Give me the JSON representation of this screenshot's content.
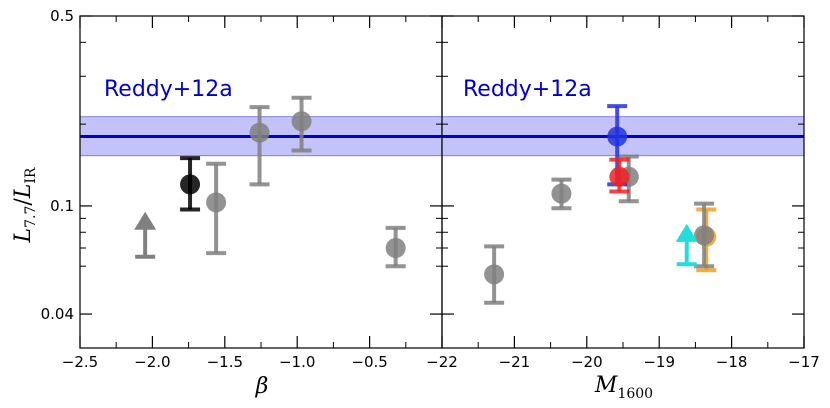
{
  "chart_data": {
    "type": "scatter",
    "y_axis": {
      "label": "L7.7/LIR",
      "label_main": "L",
      "label_sub1": "7.7",
      "label_slash": "/",
      "label_main2": "L",
      "label_sub2": "IR",
      "scale": "log",
      "ylim": [
        0.03,
        0.5
      ],
      "ticks": [
        {
          "value": 0.5,
          "label": "0.5"
        },
        {
          "value": 0.1,
          "label": "0.1"
        },
        {
          "value": 0.04,
          "label": "0.04"
        }
      ],
      "minor_ticks": [
        0.06,
        0.07,
        0.08,
        0.09,
        0.2,
        0.3,
        0.4
      ]
    },
    "reference_band": {
      "label": "Reddy+12a",
      "color": "#0000cc",
      "fill": "#b8b8f8",
      "value": 0.18,
      "low": 0.153,
      "high": 0.213
    },
    "panels": [
      {
        "xlabel": "β",
        "xlabel_main": "β",
        "xlabel_sub": "",
        "xlim": [
          -2.5,
          0.0
        ],
        "ticks": [
          {
            "value": -2.5,
            "label": "−2.5"
          },
          {
            "value": -2.0,
            "label": "−2.0"
          },
          {
            "value": -1.5,
            "label": "−1.5"
          },
          {
            "value": -1.0,
            "label": "−1.0"
          },
          {
            "value": -0.5,
            "label": "−0.5"
          }
        ],
        "minor_ticks": [
          -2.25,
          -1.75,
          -1.25,
          -0.75,
          -0.25
        ],
        "points": [
          {
            "x": -1.74,
            "y": 0.12,
            "yerr_low": 0.097,
            "yerr_high": 0.15,
            "color": "#000000",
            "marker": "circle"
          },
          {
            "x": -1.56,
            "y": 0.103,
            "yerr_low": 0.067,
            "yerr_high": 0.143,
            "color": "#808080",
            "marker": "circle"
          },
          {
            "x": -1.26,
            "y": 0.186,
            "yerr_low": 0.12,
            "yerr_high": 0.231,
            "color": "#808080",
            "marker": "circle"
          },
          {
            "x": -0.97,
            "y": 0.205,
            "yerr_low": 0.16,
            "yerr_high": 0.25,
            "color": "#808080",
            "marker": "circle"
          },
          {
            "x": -0.32,
            "y": 0.07,
            "yerr_low": 0.06,
            "yerr_high": 0.083,
            "color": "#808080",
            "marker": "circle"
          },
          {
            "x": -2.05,
            "y": 0.065,
            "color": "#808080",
            "marker": "lower-limit",
            "arrow_top": 0.092
          }
        ]
      },
      {
        "xlabel": "M1600",
        "xlabel_main": "M",
        "xlabel_sub": "1600",
        "xlim": [
          -22.0,
          -17.0
        ],
        "ticks": [
          {
            "value": -22,
            "label": "−22"
          },
          {
            "value": -21,
            "label": "−21"
          },
          {
            "value": -20,
            "label": "−20"
          },
          {
            "value": -19,
            "label": "−19"
          },
          {
            "value": -18,
            "label": "−18"
          },
          {
            "value": -17,
            "label": "−17"
          }
        ],
        "minor_ticks": [
          -21.5,
          -20.5,
          -19.5,
          -18.5,
          -17.5
        ],
        "points": [
          {
            "x": -21.28,
            "y": 0.056,
            "yerr_low": 0.044,
            "yerr_high": 0.071,
            "color": "#808080",
            "marker": "circle"
          },
          {
            "x": -20.35,
            "y": 0.111,
            "yerr_low": 0.098,
            "yerr_high": 0.125,
            "color": "#808080",
            "marker": "circle"
          },
          {
            "x": -19.42,
            "y": 0.128,
            "yerr_low": 0.104,
            "yerr_high": 0.152,
            "color": "#808080",
            "marker": "circle"
          },
          {
            "x": -19.58,
            "y": 0.18,
            "yerr_low": 0.12,
            "yerr_high": 0.233,
            "color": "#2233dd",
            "marker": "circle"
          },
          {
            "x": -19.55,
            "y": 0.128,
            "yerr_low": 0.113,
            "yerr_high": 0.148,
            "color": "#ee2222",
            "marker": "circle"
          },
          {
            "x": -18.35,
            "y": 0.077,
            "yerr_low": 0.058,
            "yerr_high": 0.097,
            "color": "#f0a020",
            "marker": "circle"
          },
          {
            "x": -18.38,
            "y": 0.078,
            "yerr_low": 0.06,
            "yerr_high": 0.102,
            "color": "#808080",
            "marker": "circle"
          },
          {
            "x": -18.62,
            "y": 0.061,
            "color": "#22dddd",
            "marker": "lower-limit",
            "arrow_top": 0.083
          }
        ]
      }
    ]
  }
}
